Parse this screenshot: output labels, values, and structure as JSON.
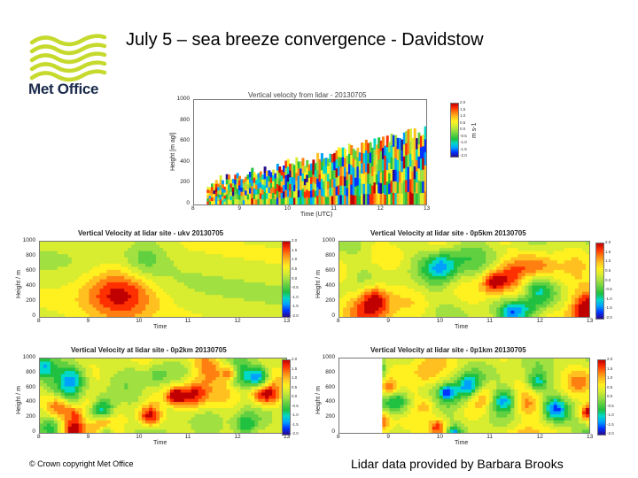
{
  "slide": {
    "title": "July 5 – sea breeze convergence - Davidstow",
    "logo_text": "Met Office",
    "footer_left": "© Crown copyright   Met Office",
    "footer_right": "Lidar data provided by Barbara Brooks"
  },
  "colors": {
    "logo_green": "#c6d92d",
    "logo_text": "#1a2a4a"
  },
  "chart_data": [
    {
      "type": "heatmap",
      "title": "Vertical velocity from lidar - 20130705",
      "xlabel": "Time (UTC)",
      "ylabel": "Height [m agl]",
      "x_ticks": [
        "8",
        "9",
        "10",
        "11",
        "12",
        "13"
      ],
      "y_ticks": [
        "0",
        "200",
        "400",
        "600",
        "800",
        "1000"
      ],
      "xlim": [
        8,
        13
      ],
      "ylim": [
        0,
        1000
      ],
      "colorbar_label": "m s-1",
      "colorbar_ticks": [
        "2.0",
        "1.5",
        "1.0",
        "0.5",
        "0.0",
        "-0.5",
        "-1.0",
        "-1.5",
        "-2.0"
      ]
    },
    {
      "type": "heatmap",
      "title": "Vertical Velocity at lidar site - ukv 20130705",
      "xlabel": "Time",
      "ylabel": "Height / m",
      "x_ticks": [
        "8",
        "9",
        "10",
        "11",
        "12",
        "13"
      ],
      "y_ticks": [
        "0",
        "200",
        "400",
        "600",
        "800",
        "1000"
      ],
      "xlim": [
        8,
        13
      ],
      "ylim": [
        0,
        1000
      ],
      "colorbar_ticks": [
        "2.0",
        "1.5",
        "1.0",
        "0.5",
        "0.0",
        "-0.5",
        "-1.0",
        "-1.5",
        "-2.0"
      ]
    },
    {
      "type": "heatmap",
      "title": "Vertical Velocity at lidar site - 0p5km 20130705",
      "xlabel": "Time",
      "ylabel": "Height / m",
      "x_ticks": [
        "8",
        "9",
        "10",
        "11",
        "12",
        "13"
      ],
      "y_ticks": [
        "0",
        "200",
        "400",
        "600",
        "800",
        "1000"
      ],
      "xlim": [
        8,
        13
      ],
      "ylim": [
        0,
        1000
      ],
      "colorbar_ticks": [
        "2.0",
        "1.5",
        "1.0",
        "0.5",
        "0.0",
        "-0.5",
        "-1.0",
        "-1.5",
        "-2.0"
      ]
    },
    {
      "type": "heatmap",
      "title": "Vertical Velocity at lidar site - 0p2km 20130705",
      "xlabel": "Time",
      "ylabel": "Height / m",
      "x_ticks": [
        "8",
        "9",
        "10",
        "11",
        "12",
        "13"
      ],
      "y_ticks": [
        "0",
        "200",
        "400",
        "600",
        "800",
        "1000"
      ],
      "xlim": [
        8,
        13
      ],
      "ylim": [
        0,
        1000
      ],
      "colorbar_ticks": [
        "2.0",
        "1.5",
        "1.0",
        "0.5",
        "0.0",
        "-0.5",
        "-1.0",
        "-1.5",
        "-2.0"
      ]
    },
    {
      "type": "heatmap",
      "title": "Vertical Velocity at lidar site - 0p1km 20130705",
      "xlabel": "Time",
      "ylabel": "Height / m",
      "x_ticks": [
        "8",
        "9",
        "10",
        "11",
        "12",
        "13"
      ],
      "y_ticks": [
        "0",
        "200",
        "400",
        "600",
        "800",
        "1000"
      ],
      "xlim": [
        8,
        13
      ],
      "ylim": [
        0,
        1000
      ],
      "colorbar_ticks": [
        "2.0",
        "1.5",
        "1.0",
        "0.5",
        "0.0",
        "-0.5",
        "-1.0",
        "-1.5",
        "-2.0"
      ]
    }
  ]
}
